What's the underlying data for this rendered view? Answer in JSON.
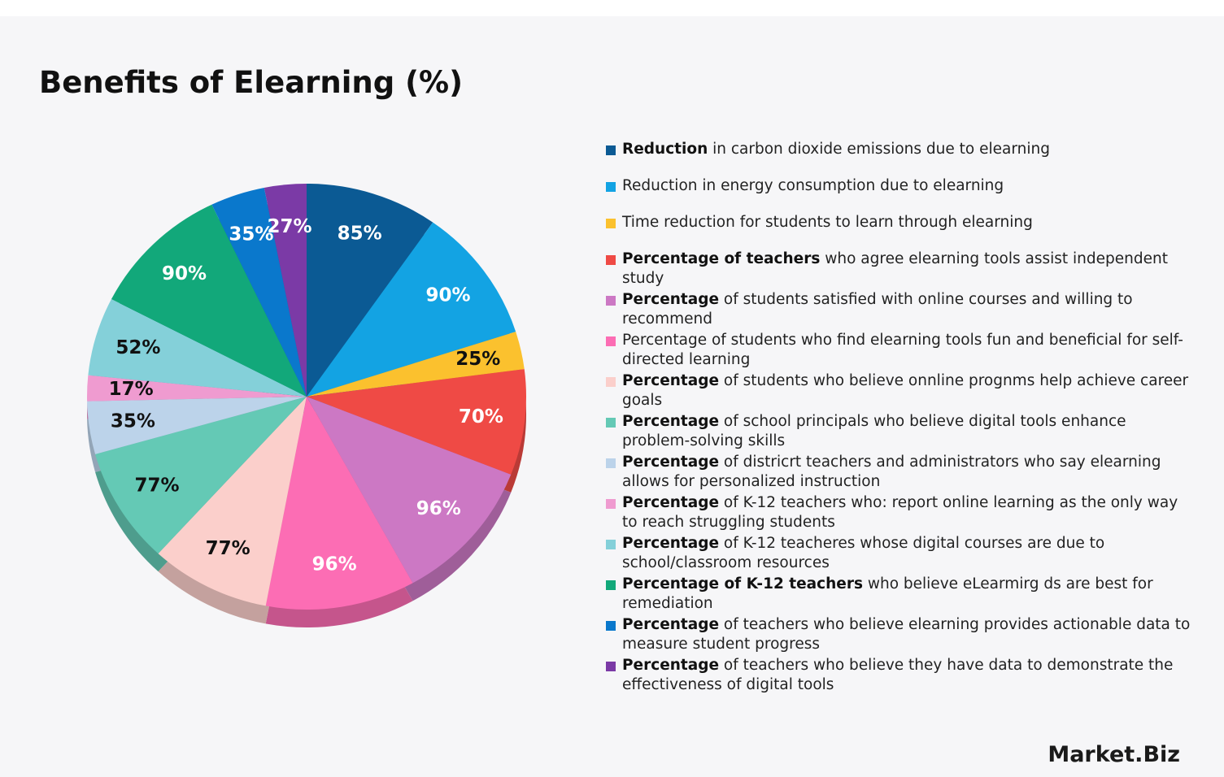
{
  "chart_data": {
    "type": "pie",
    "title": "Benefits of Elearning (%)",
    "categories": [
      {
        "lead": "Reduction",
        "rest": " in carbon dioxide emissions due to elearning"
      },
      {
        "lead": "",
        "rest": "Reduction in energy consumption due to elearning"
      },
      {
        "lead": "",
        "rest": "Time reduction for students to learn through elearning"
      },
      {
        "lead": "Percentage of teachers",
        "rest": " who agree elearning tools assist independent study"
      },
      {
        "lead": "Percentage",
        "rest": " of students satisfied with online courses and willing to recommend"
      },
      {
        "lead": "",
        "rest": "Percentage of students who find elearning tools fun and beneficial for self-directed learning"
      },
      {
        "lead": "Percentage",
        "rest": " of students who believe onnline prognms help achieve career goals"
      },
      {
        "lead": "Percentage",
        "rest": " of school principals who believe digital tools enhance problem-solving skills"
      },
      {
        "lead": "Percentage",
        "rest": " of districrt teachers and administrators who say elearning allows for personalized instruction"
      },
      {
        "lead": "Percentage",
        "rest": " of K-12 teachers who: report online learning as the only way to reach struggling students"
      },
      {
        "lead": "Percentage",
        "rest": " of K-12 teacheres whose digital courses are due to school/classroom resources"
      },
      {
        "lead": "Percentage of K-12 teachers",
        "rest": " who believe eLearmirg ds are best for remediation"
      },
      {
        "lead": "Percentage",
        "rest": " of teachers who believe elearning provides actionable data to measure student progress"
      },
      {
        "lead": "Percentage",
        "rest": " of teachers who believe they have data to demonstrate the effectiveness of digital tools"
      }
    ],
    "values": [
      85,
      90,
      25,
      70,
      96,
      96,
      77,
      77,
      35,
      17,
      52,
      90,
      35,
      27
    ],
    "value_labels": [
      "85%",
      "90%",
      "25%",
      "70%",
      "96%",
      "96%",
      "77%",
      "77%",
      "35%",
      "17%",
      "52%",
      "90%",
      "35%",
      "27%"
    ],
    "colors": [
      "#0b5a94",
      "#13a3e3",
      "#fbc12e",
      "#ef4a45",
      "#cc78c4",
      "#fc6db4",
      "#fbcfcb",
      "#64c9b5",
      "#bcd3ea",
      "#ef9bd0",
      "#84d0d9",
      "#12a87a",
      "#0a78cc",
      "#7b3aa6"
    ]
  },
  "brand": "Market.Biz"
}
